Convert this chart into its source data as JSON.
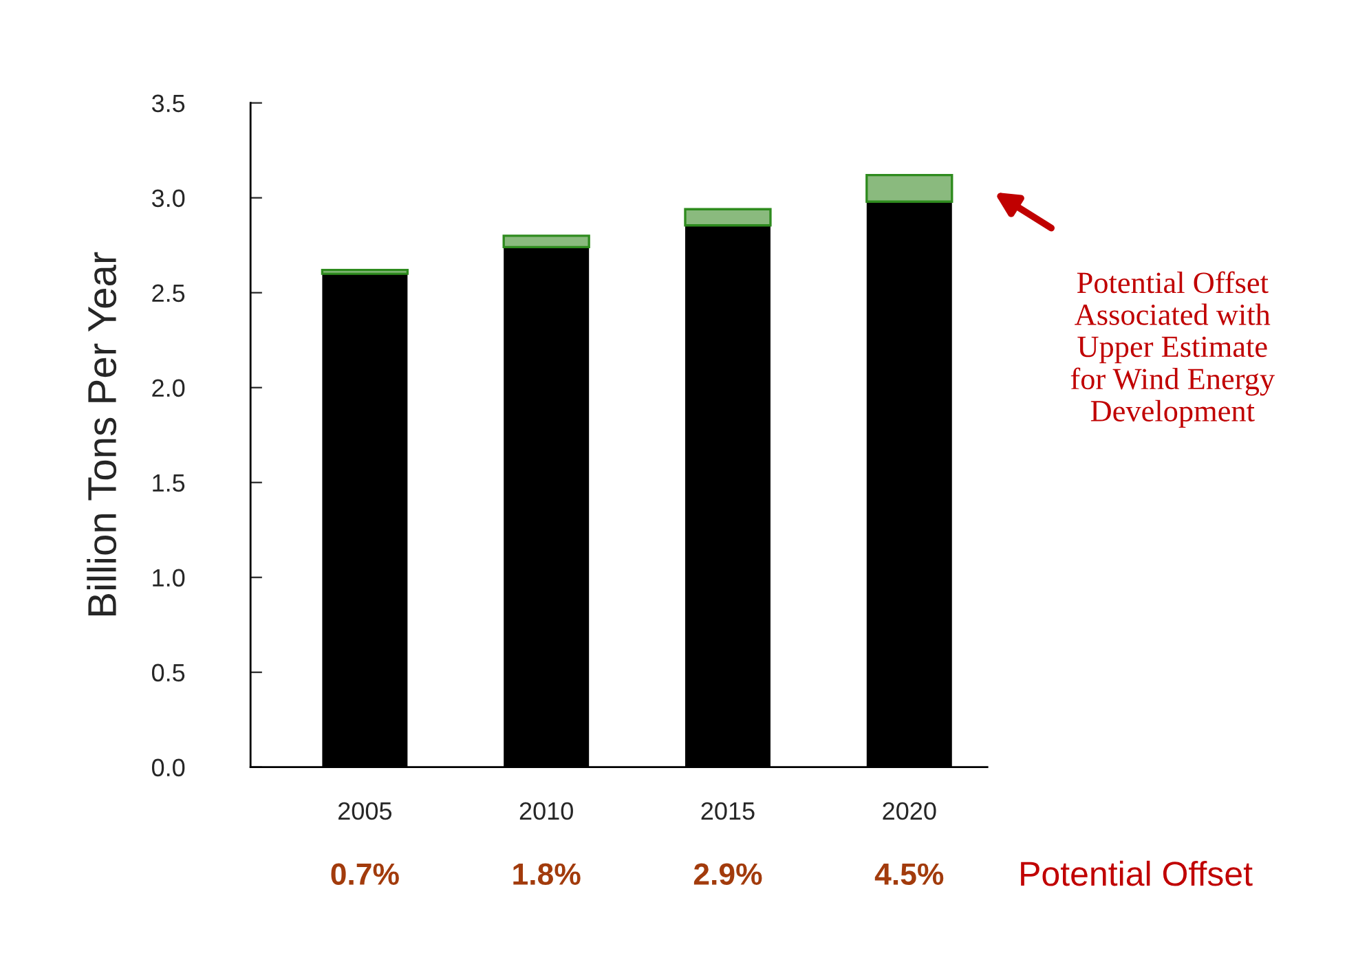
{
  "chart_data": {
    "type": "bar",
    "stacked": true,
    "ylabel": "Billion Tons Per Year",
    "categories": [
      "2005",
      "2010",
      "2015",
      "2020"
    ],
    "series": [
      {
        "color": "#000000",
        "values": [
          2.6,
          2.74,
          2.855,
          2.98
        ]
      },
      {
        "color": "#8aba7e",
        "values": [
          0.02,
          0.06,
          0.085,
          0.14
        ]
      }
    ],
    "ylim": [
      0,
      3.5
    ],
    "yticks": [
      {
        "value": 0,
        "label": "0.0"
      },
      {
        "value": 0.5,
        "label": "0.5"
      },
      {
        "value": 1,
        "label": "1.0"
      },
      {
        "value": 1.5,
        "label": "1.5"
      },
      {
        "value": 2,
        "label": "2.0"
      },
      {
        "value": 2.5,
        "label": "2.5"
      },
      {
        "value": 3,
        "label": "3.0"
      },
      {
        "value": 3.5,
        "label": "3.5"
      }
    ],
    "grid": false,
    "legend": false,
    "annotations": [
      "Potential Offset\nAssociated with\nUpper Estimate\nfor Wind Energy\nDevelopment",
      "Potential Offset",
      "0.7%",
      "1.8%",
      "2.9%",
      "4.5%"
    ]
  }
}
